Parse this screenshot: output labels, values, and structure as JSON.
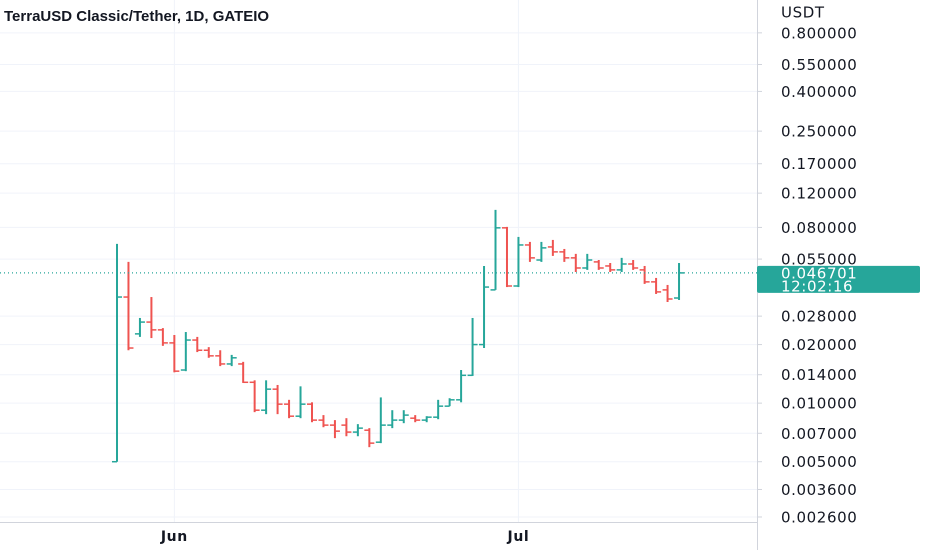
{
  "chart_data": {
    "type": "ohlc",
    "title": "TerraUSD Classic/Tether, 1D, GATEIO",
    "y_axis_label": "USDT",
    "countdown": "12:02:16",
    "log_scale": true,
    "grid": true,
    "up_color": "#26a69a",
    "down_color": "#ef5350",
    "categories": [
      null,
      null,
      null,
      null,
      null,
      "Jun",
      null,
      null,
      null,
      null,
      null,
      null,
      null,
      null,
      null,
      null,
      null,
      null,
      null,
      null,
      null,
      null,
      null,
      null,
      null,
      null,
      null,
      null,
      null,
      null,
      null,
      null,
      null,
      null,
      null,
      "Jul",
      null,
      null,
      null,
      null,
      null,
      null,
      null,
      null,
      null,
      null,
      null,
      null,
      null,
      null
    ],
    "open": [
      0.005,
      0.0351,
      0.0227,
      0.0261,
      0.0238,
      0.0204,
      0.0148,
      0.0211,
      0.0187,
      0.0175,
      0.0159,
      0.0159,
      0.0128,
      0.0092,
      0.0118,
      0.00988,
      0.00857,
      0.00988,
      0.00818,
      0.00771,
      0.00771,
      0.0071,
      0.00726,
      0.0063,
      0.00771,
      0.00818,
      0.00837,
      0.00818,
      0.00847,
      0.00965,
      0.0104,
      0.0139,
      0.02,
      0.0382,
      0.0796,
      0.04,
      0.065,
      0.0544,
      0.0635,
      0.0599,
      0.0558,
      0.0495,
      0.0532,
      0.0507,
      0.0484,
      0.0519,
      0.0484,
      0.042,
      0.0382,
      0.0347
    ],
    "high": [
      0.0658,
      0.0532,
      0.0274,
      0.0351,
      0.0243,
      0.0224,
      0.0232,
      0.0219,
      0.0194,
      0.0187,
      0.0177,
      0.0163,
      0.0131,
      0.0131,
      0.0124,
      0.0104,
      0.0122,
      0.0101,
      0.00868,
      0.00818,
      0.00837,
      0.0078,
      0.00744,
      0.0107,
      0.0092,
      0.0092,
      0.00868,
      0.00857,
      0.0104,
      0.0106,
      0.0148,
      0.0274,
      0.0507,
      0.0985,
      0.0805,
      0.0715,
      0.0674,
      0.0674,
      0.069,
      0.062,
      0.0585,
      0.0585,
      0.0544,
      0.0525,
      0.0558,
      0.0544,
      0.0507,
      0.044,
      0.0405,
      0.0525
    ],
    "low": [
      0.005,
      0.0187,
      0.0219,
      0.0216,
      0.0197,
      0.0144,
      0.0146,
      0.0183,
      0.0171,
      0.0155,
      0.0155,
      0.0127,
      0.00899,
      0.00878,
      0.00878,
      0.00837,
      0.00837,
      0.00798,
      0.00752,
      0.00661,
      0.00676,
      0.00676,
      0.00594,
      0.00623,
      0.00744,
      0.00789,
      0.00798,
      0.00798,
      0.00827,
      0.00965,
      0.0101,
      0.0138,
      0.0192,
      0.0382,
      0.0395,
      0.0395,
      0.0532,
      0.0532,
      0.0571,
      0.0532,
      0.0472,
      0.0484,
      0.0484,
      0.0472,
      0.0472,
      0.0484,
      0.041,
      0.0364,
      0.0331,
      0.0339
    ],
    "close": [
      0.0351,
      0.0192,
      0.0261,
      0.0238,
      0.0204,
      0.0146,
      0.0211,
      0.0187,
      0.0175,
      0.0159,
      0.0171,
      0.0128,
      0.0092,
      0.0118,
      0.00988,
      0.00857,
      0.00988,
      0.00818,
      0.00771,
      0.00718,
      0.0071,
      0.00744,
      0.00623,
      0.00771,
      0.00818,
      0.00868,
      0.00818,
      0.00847,
      0.00965,
      0.0104,
      0.0139,
      0.02,
      0.0395,
      0.0796,
      0.04,
      0.065,
      0.0558,
      0.0628,
      0.0599,
      0.0558,
      0.0495,
      0.0544,
      0.0495,
      0.0484,
      0.0519,
      0.0495,
      0.042,
      0.0373,
      0.0343,
      0.046701
    ],
    "ylim": [
      0.00245,
      1.18
    ],
    "yticks": [
      {
        "value": 0.8,
        "label": "0.800000"
      },
      {
        "value": 0.55,
        "label": "0.550000"
      },
      {
        "value": 0.4,
        "label": "0.400000"
      },
      {
        "value": 0.25,
        "label": "0.250000"
      },
      {
        "value": 0.17,
        "label": "0.170000"
      },
      {
        "value": 0.12,
        "label": "0.120000"
      },
      {
        "value": 0.08,
        "label": "0.080000"
      },
      {
        "value": 0.055,
        "label": "0.055000"
      },
      {
        "value": 0.028,
        "label": "0.028000"
      },
      {
        "value": 0.02,
        "label": "0.020000"
      },
      {
        "value": 0.014,
        "label": "0.014000"
      },
      {
        "value": 0.01,
        "label": "0.010000"
      },
      {
        "value": 0.007,
        "label": "0.007000"
      },
      {
        "value": 0.005,
        "label": "0.005000"
      },
      {
        "value": 0.0036,
        "label": "0.003600"
      },
      {
        "value": 0.0026,
        "label": "0.002600"
      }
    ]
  }
}
